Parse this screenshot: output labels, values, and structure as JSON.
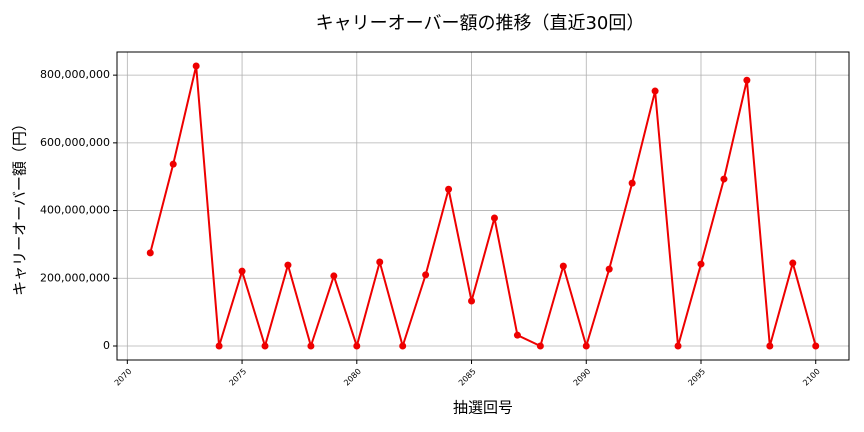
{
  "chart_data": {
    "type": "line",
    "title": "キャリーオーバー額の推移（直近30回）",
    "x_label": "抽選回号",
    "y_label": "キャリーオーバー額（円）",
    "x": [
      2071,
      2072,
      2073,
      2074,
      2075,
      2076,
      2077,
      2078,
      2079,
      2080,
      2081,
      2082,
      2083,
      2084,
      2085,
      2086,
      2087,
      2088,
      2089,
      2090,
      2091,
      2092,
      2093,
      2094,
      2095,
      2096,
      2097,
      2098,
      2099,
      2100
    ],
    "series": [
      {
        "color": "#ee0000",
        "values": [
          275000000,
          537000000,
          827000000,
          0,
          221000000,
          0,
          239000000,
          0,
          207000000,
          0,
          248000000,
          0,
          210000000,
          463000000,
          133000000,
          378000000,
          32000000,
          0,
          236000000,
          0,
          227000000,
          481000000,
          753000000,
          0,
          242000000,
          493000000,
          785000000,
          0,
          245000000,
          0
        ]
      }
    ],
    "xlim": [
      2069.55,
      2101.45
    ],
    "ylim": [
      -41350000,
      868350000
    ],
    "xticks": [
      2070,
      2075,
      2080,
      2085,
      2090,
      2095,
      2100
    ],
    "yticks": [
      0,
      {
        "value": 200000000,
        "label": "200,000,000"
      },
      {
        "value": 400000000,
        "label": "400,000,000"
      },
      {
        "value": 600000000,
        "label": "600,000,000"
      },
      {
        "value": 800000000,
        "label": "800,000,000"
      }
    ],
    "grid": true
  }
}
